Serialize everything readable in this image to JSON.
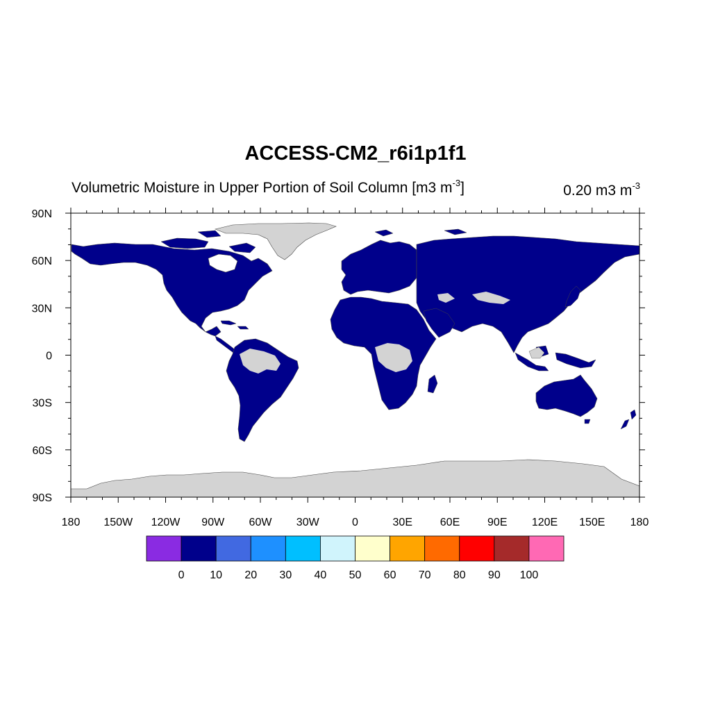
{
  "title": "ACCESS-CM2_r6i1p1f1",
  "subtitle": {
    "text": "Volumetric Moisture in Upper Portion of Soil Column [m3 m",
    "sup": "-3",
    "close": "]"
  },
  "unit_label": {
    "text": "0.20 m3 m",
    "sup": "-3"
  },
  "map": {
    "projection": "cylindrical equidistant",
    "lon_range": [
      -180,
      180
    ],
    "lat_range": [
      -90,
      90
    ],
    "land_color": "#00008b",
    "missing_color": "#d3d3d3",
    "ocean_color": "#ffffff",
    "lat_ticks": [
      {
        "value": 90,
        "label": "90N"
      },
      {
        "value": 60,
        "label": "60N"
      },
      {
        "value": 30,
        "label": "30N"
      },
      {
        "value": 0,
        "label": "0"
      },
      {
        "value": -30,
        "label": "30S"
      },
      {
        "value": -60,
        "label": "60S"
      },
      {
        "value": -90,
        "label": "90S"
      }
    ],
    "lon_ticks": [
      {
        "value": -180,
        "label": "180"
      },
      {
        "value": -150,
        "label": "150W"
      },
      {
        "value": -120,
        "label": "120W"
      },
      {
        "value": -90,
        "label": "90W"
      },
      {
        "value": -60,
        "label": "60W"
      },
      {
        "value": -30,
        "label": "30W"
      },
      {
        "value": 0,
        "label": "0"
      },
      {
        "value": 30,
        "label": "30E"
      },
      {
        "value": 60,
        "label": "60E"
      },
      {
        "value": 90,
        "label": "90E"
      },
      {
        "value": 120,
        "label": "120E"
      },
      {
        "value": 150,
        "label": "150E"
      },
      {
        "value": 180,
        "label": "180"
      }
    ]
  },
  "colorbar": {
    "colors": [
      "#8a2be2",
      "#00008b",
      "#4169e1",
      "#1e90ff",
      "#00bfff",
      "#d0f4fc",
      "#ffffcc",
      "#ffa500",
      "#ff6a00",
      "#ff0000",
      "#a52a2a",
      "#ff69b4"
    ],
    "labels": [
      "0",
      "10",
      "20",
      "30",
      "40",
      "50",
      "60",
      "70",
      "80",
      "90",
      "100"
    ]
  }
}
